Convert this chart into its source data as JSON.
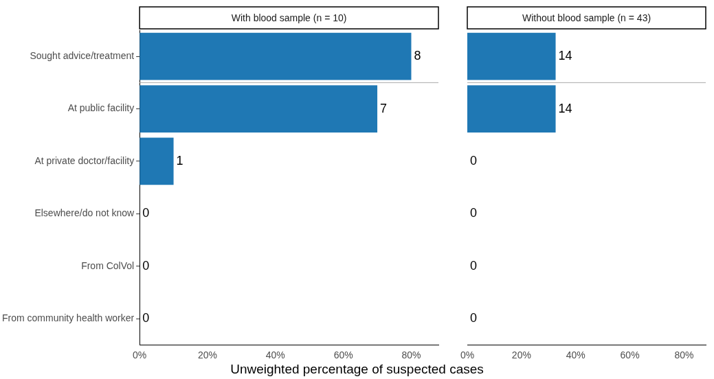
{
  "chart_data": [
    {
      "type": "bar",
      "orientation": "horizontal",
      "title": "With blood sample (n = 10)",
      "xlabel": "Unweighted percentage of suspected cases",
      "categories": [
        "Sought advice/treatment",
        "At public facility",
        "At private doctor/facility",
        "Elsewhere/do not know",
        "From ColVol",
        "From community health worker"
      ],
      "values": [
        80,
        70,
        10,
        0,
        0,
        0
      ],
      "color": "#1f78b4",
      "annotations": [
        {
          "text": "8",
          "x": 80,
          "y": "Sought advice/treatment"
        },
        {
          "text": "7",
          "x": 70,
          "y": "At public facility"
        },
        {
          "text": "1",
          "x": 10,
          "y": "At private doctor/facility"
        },
        {
          "text": "0",
          "x": 0,
          "y": "Elsewhere/do not know"
        },
        {
          "text": "0",
          "x": 0,
          "y": "From ColVol"
        },
        {
          "text": "0",
          "x": 0,
          "y": "From community health worker"
        }
      ],
      "xlim": [
        0,
        88
      ],
      "xticks": [
        {
          "value": 0,
          "label": "0%"
        },
        {
          "value": 20,
          "label": "20%"
        },
        {
          "value": 40,
          "label": "40%"
        },
        {
          "value": 60,
          "label": "60%"
        },
        {
          "value": 80,
          "label": "80%"
        }
      ],
      "grid": false,
      "legend": false
    },
    {
      "type": "bar",
      "orientation": "horizontal",
      "title": "Without blood sample (n = 43)",
      "categories": [
        "Sought advice/treatment",
        "At public facility",
        "At private doctor/facility",
        "Elsewhere/do not know",
        "From ColVol",
        "From community health worker"
      ],
      "values": [
        32.6,
        32.6,
        0,
        0,
        0,
        0
      ],
      "color": "#1f78b4",
      "annotations": [
        {
          "text": "14",
          "x": 32.6,
          "y": "Sought advice/treatment"
        },
        {
          "text": "14",
          "x": 32.6,
          "y": "At public facility"
        },
        {
          "text": "0",
          "x": 0,
          "y": "At private doctor/facility"
        },
        {
          "text": "0",
          "x": 0,
          "y": "Elsewhere/do not know"
        },
        {
          "text": "0",
          "x": 0,
          "y": "From ColVol"
        },
        {
          "text": "0",
          "x": 0,
          "y": "From community health worker"
        }
      ],
      "xlim": [
        0,
        88
      ],
      "xticks": [
        {
          "value": 0,
          "label": "0%"
        },
        {
          "value": 20,
          "label": "20%"
        },
        {
          "value": 40,
          "label": "40%"
        },
        {
          "value": 60,
          "label": "60%"
        },
        {
          "value": 80,
          "label": "80%"
        }
      ],
      "grid": false,
      "legend": false,
      "tick_labels": "x"
    }
  ]
}
